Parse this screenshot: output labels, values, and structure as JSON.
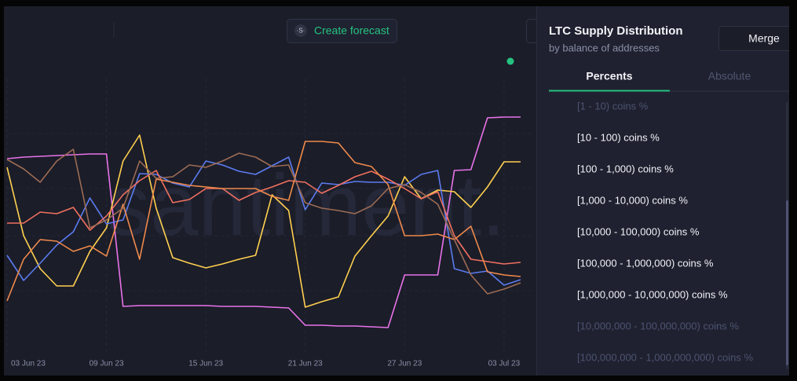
{
  "toolbar": {
    "forecast_icon": "·S·",
    "forecast_button": "Create forecast"
  },
  "watermark": "santiment.",
  "chart_data": {
    "type": "line",
    "categories": [
      "03 Jun 23",
      null,
      null,
      null,
      null,
      null,
      "09 Jun 23",
      null,
      null,
      null,
      null,
      null,
      "15 Jun 23",
      null,
      null,
      null,
      null,
      null,
      "21 Jun 23",
      null,
      null,
      null,
      null,
      null,
      "27 Jun 23",
      null,
      null,
      null,
      null,
      null,
      "03 Jul 23",
      null
    ],
    "ylim": [
      0,
      310
    ],
    "series": [
      {
        "color": "#e873e8",
        "values": [
          248,
          250,
          251,
          252,
          253,
          254,
          254,
          60,
          61,
          61,
          61,
          61,
          61,
          60,
          60,
          60,
          59,
          58,
          36,
          36,
          35,
          35,
          34,
          33,
          100,
          100,
          100,
          233,
          234,
          300,
          301,
          301
        ]
      },
      {
        "color": "#ffd04f",
        "values": [
          237,
          150,
          108,
          86,
          86,
          130,
          160,
          245,
          278,
          185,
          122,
          115,
          109,
          114,
          120,
          125,
          202,
          182,
          59,
          66,
          72,
          124,
          150,
          175,
          225,
          197,
          208,
          206,
          186,
          212,
          244,
          244
        ]
      },
      {
        "color": "#5c7cf0",
        "values": [
          125,
          93,
          115,
          138,
          155,
          198,
          165,
          170,
          229,
          228,
          217,
          212,
          245,
          240,
          232,
          228,
          239,
          250,
          183,
          217,
          215,
          219,
          218,
          218,
          214,
          228,
          233,
          108,
          102,
          105,
          87,
          94
        ]
      },
      {
        "color": "#f0705f",
        "values": [
          166,
          166,
          180,
          178,
          186,
          157,
          175,
          202,
          220,
          233,
          192,
          196,
          210,
          210,
          195,
          205,
          212,
          220,
          218,
          204,
          214,
          225,
          232,
          222,
          210,
          197,
          206,
          150,
          120,
          117,
          114,
          116
        ]
      },
      {
        "color": "#f08a4b",
        "values": [
          67,
          120,
          145,
          143,
          130,
          137,
          124,
          190,
          120,
          222,
          218,
          214,
          212,
          210,
          210,
          210,
          200,
          195,
          270,
          270,
          268,
          243,
          238,
          215,
          150,
          150,
          152,
          145,
          162,
          104,
          100,
          98
        ]
      },
      {
        "color": "#9c6b53",
        "values": [
          247,
          235,
          218,
          245,
          260,
          160,
          170,
          185,
          245,
          223,
          225,
          240,
          237,
          245,
          255,
          250,
          238,
          240,
          192,
          185,
          182,
          178,
          188,
          210,
          215,
          205,
          190,
          145,
          100,
          76,
          82,
          90
        ]
      }
    ]
  },
  "sidebar": {
    "title": "LTC Supply Distribution",
    "subtitle": "by balance of addresses",
    "merge": "Merge",
    "tabs": [
      "Percents",
      "Absolute"
    ],
    "metrics": [
      "[1 - 10) coins %",
      "[10 - 100) coins %",
      "[100 - 1,000) coins %",
      "[1,000 - 10,000) coins %",
      "[10,000 - 100,000) coins %",
      "[100,000 - 1,000,000) coins %",
      "[1,000,000 - 10,000,000) coins %",
      "[10,000,000 - 100,000,000) coins %",
      "[100,000,000 - 1,000,000,000) coins %"
    ]
  }
}
